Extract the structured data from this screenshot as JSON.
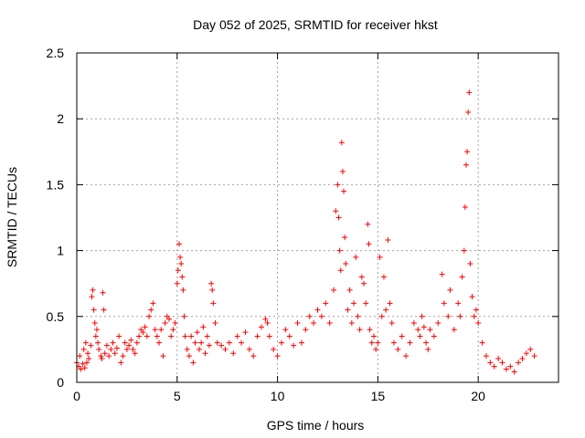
{
  "chart_data": {
    "type": "scatter",
    "title": "Day 052 of 2025, SRMTID for receiver hkst",
    "xlabel": "GPS time / hours",
    "ylabel": "SRMTID / TECUs",
    "xlim": [
      0,
      24
    ],
    "ylim": [
      0,
      2.5
    ],
    "x_ticks": [
      0,
      5,
      10,
      15,
      20
    ],
    "x_tick_labels": [
      "0",
      "5",
      "10",
      "15",
      "20"
    ],
    "y_ticks": [
      0,
      0.5,
      1,
      1.5,
      2,
      2.5
    ],
    "y_tick_labels": [
      "0",
      "0.5",
      "1",
      "1.5",
      "2",
      "2.5"
    ],
    "grid": true,
    "marker": "+",
    "series": [
      {
        "name": "SRMTID",
        "color": "#ff0000",
        "points": [
          [
            0.0,
            0.15
          ],
          [
            0.1,
            0.12
          ],
          [
            0.15,
            0.2
          ],
          [
            0.2,
            0.1
          ],
          [
            0.3,
            0.14
          ],
          [
            0.35,
            0.25
          ],
          [
            0.4,
            0.11
          ],
          [
            0.45,
            0.3
          ],
          [
            0.5,
            0.15
          ],
          [
            0.55,
            0.22
          ],
          [
            0.6,
            0.18
          ],
          [
            0.7,
            0.28
          ],
          [
            0.75,
            0.65
          ],
          [
            0.8,
            0.7
          ],
          [
            0.85,
            0.55
          ],
          [
            0.9,
            0.45
          ],
          [
            0.95,
            0.35
          ],
          [
            1.0,
            0.4
          ],
          [
            1.05,
            0.3
          ],
          [
            1.1,
            0.25
          ],
          [
            1.2,
            0.2
          ],
          [
            1.25,
            0.18
          ],
          [
            1.3,
            0.68
          ],
          [
            1.35,
            0.55
          ],
          [
            1.4,
            0.22
          ],
          [
            1.5,
            0.28
          ],
          [
            1.6,
            0.2
          ],
          [
            1.7,
            0.25
          ],
          [
            1.8,
            0.3
          ],
          [
            1.9,
            0.22
          ],
          [
            2.0,
            0.26
          ],
          [
            2.1,
            0.35
          ],
          [
            2.2,
            0.15
          ],
          [
            2.3,
            0.2
          ],
          [
            2.4,
            0.3
          ],
          [
            2.5,
            0.25
          ],
          [
            2.6,
            0.28
          ],
          [
            2.7,
            0.32
          ],
          [
            2.8,
            0.25
          ],
          [
            2.9,
            0.22
          ],
          [
            3.0,
            0.3
          ],
          [
            3.1,
            0.35
          ],
          [
            3.2,
            0.4
          ],
          [
            3.3,
            0.38
          ],
          [
            3.4,
            0.42
          ],
          [
            3.5,
            0.35
          ],
          [
            3.6,
            0.5
          ],
          [
            3.7,
            0.55
          ],
          [
            3.8,
            0.6
          ],
          [
            3.9,
            0.4
          ],
          [
            4.0,
            0.35
          ],
          [
            4.1,
            0.3
          ],
          [
            4.2,
            0.4
          ],
          [
            4.3,
            0.2
          ],
          [
            4.4,
            0.45
          ],
          [
            4.5,
            0.5
          ],
          [
            4.6,
            0.48
          ],
          [
            4.7,
            0.35
          ],
          [
            4.8,
            0.4
          ],
          [
            4.9,
            0.45
          ],
          [
            5.0,
            0.75
          ],
          [
            5.05,
            0.85
          ],
          [
            5.1,
            1.05
          ],
          [
            5.15,
            0.95
          ],
          [
            5.2,
            0.9
          ],
          [
            5.25,
            0.8
          ],
          [
            5.3,
            0.7
          ],
          [
            5.35,
            0.5
          ],
          [
            5.4,
            0.35
          ],
          [
            5.5,
            0.25
          ],
          [
            5.6,
            0.2
          ],
          [
            5.7,
            0.35
          ],
          [
            5.8,
            0.15
          ],
          [
            5.9,
            0.3
          ],
          [
            6.0,
            0.38
          ],
          [
            6.1,
            0.25
          ],
          [
            6.2,
            0.3
          ],
          [
            6.3,
            0.42
          ],
          [
            6.4,
            0.22
          ],
          [
            6.5,
            0.35
          ],
          [
            6.6,
            0.28
          ],
          [
            6.7,
            0.75
          ],
          [
            6.75,
            0.7
          ],
          [
            6.8,
            0.6
          ],
          [
            6.9,
            0.45
          ],
          [
            7.0,
            0.3
          ],
          [
            7.2,
            0.28
          ],
          [
            7.4,
            0.25
          ],
          [
            7.6,
            0.3
          ],
          [
            7.8,
            0.22
          ],
          [
            8.0,
            0.35
          ],
          [
            8.2,
            0.3
          ],
          [
            8.4,
            0.38
          ],
          [
            8.6,
            0.25
          ],
          [
            8.8,
            0.2
          ],
          [
            9.0,
            0.35
          ],
          [
            9.2,
            0.42
          ],
          [
            9.4,
            0.48
          ],
          [
            9.5,
            0.45
          ],
          [
            9.6,
            0.35
          ],
          [
            9.8,
            0.25
          ],
          [
            10.0,
            0.2
          ],
          [
            10.2,
            0.3
          ],
          [
            10.4,
            0.4
          ],
          [
            10.6,
            0.35
          ],
          [
            10.8,
            0.28
          ],
          [
            11.0,
            0.45
          ],
          [
            11.2,
            0.3
          ],
          [
            11.4,
            0.4
          ],
          [
            11.6,
            0.5
          ],
          [
            11.8,
            0.45
          ],
          [
            12.0,
            0.55
          ],
          [
            12.2,
            0.5
          ],
          [
            12.4,
            0.6
          ],
          [
            12.6,
            0.45
          ],
          [
            12.8,
            0.7
          ],
          [
            12.9,
            1.3
          ],
          [
            13.0,
            1.5
          ],
          [
            13.05,
            1.25
          ],
          [
            13.1,
            1.0
          ],
          [
            13.15,
            0.85
          ],
          [
            13.2,
            1.82
          ],
          [
            13.25,
            1.6
          ],
          [
            13.3,
            1.45
          ],
          [
            13.35,
            1.1
          ],
          [
            13.4,
            0.9
          ],
          [
            13.5,
            0.55
          ],
          [
            13.6,
            0.7
          ],
          [
            13.7,
            0.45
          ],
          [
            13.8,
            0.6
          ],
          [
            13.9,
            0.95
          ],
          [
            14.0,
            0.5
          ],
          [
            14.1,
            0.4
          ],
          [
            14.2,
            0.8
          ],
          [
            14.3,
            0.75
          ],
          [
            14.4,
            0.6
          ],
          [
            14.5,
            1.2
          ],
          [
            14.55,
            1.05
          ],
          [
            14.6,
            0.4
          ],
          [
            14.7,
            0.3
          ],
          [
            14.8,
            0.35
          ],
          [
            14.9,
            0.25
          ],
          [
            15.0,
            0.3
          ],
          [
            15.1,
            0.95
          ],
          [
            15.2,
            0.5
          ],
          [
            15.3,
            0.8
          ],
          [
            15.4,
            0.55
          ],
          [
            15.5,
            1.08
          ],
          [
            15.6,
            0.6
          ],
          [
            15.7,
            0.45
          ],
          [
            15.8,
            0.3
          ],
          [
            16.0,
            0.25
          ],
          [
            16.2,
            0.35
          ],
          [
            16.4,
            0.2
          ],
          [
            16.6,
            0.3
          ],
          [
            16.8,
            0.45
          ],
          [
            17.0,
            0.4
          ],
          [
            17.1,
            0.35
          ],
          [
            17.2,
            0.5
          ],
          [
            17.3,
            0.42
          ],
          [
            17.4,
            0.3
          ],
          [
            17.5,
            0.25
          ],
          [
            17.6,
            0.4
          ],
          [
            17.8,
            0.35
          ],
          [
            18.0,
            0.45
          ],
          [
            18.2,
            0.82
          ],
          [
            18.3,
            0.6
          ],
          [
            18.5,
            0.5
          ],
          [
            18.6,
            0.7
          ],
          [
            18.8,
            0.4
          ],
          [
            19.0,
            0.6
          ],
          [
            19.1,
            0.5
          ],
          [
            19.2,
            0.8
          ],
          [
            19.3,
            1.0
          ],
          [
            19.35,
            1.33
          ],
          [
            19.4,
            1.65
          ],
          [
            19.45,
            1.75
          ],
          [
            19.5,
            2.05
          ],
          [
            19.55,
            2.2
          ],
          [
            19.6,
            0.9
          ],
          [
            19.7,
            0.65
          ],
          [
            19.8,
            0.5
          ],
          [
            19.9,
            0.55
          ],
          [
            20.0,
            0.45
          ],
          [
            20.2,
            0.3
          ],
          [
            20.4,
            0.2
          ],
          [
            20.6,
            0.15
          ],
          [
            20.8,
            0.12
          ],
          [
            21.0,
            0.18
          ],
          [
            21.2,
            0.15
          ],
          [
            21.4,
            0.1
          ],
          [
            21.6,
            0.12
          ],
          [
            21.8,
            0.08
          ],
          [
            22.0,
            0.15
          ],
          [
            22.2,
            0.18
          ],
          [
            22.4,
            0.22
          ],
          [
            22.6,
            0.25
          ],
          [
            22.8,
            0.2
          ]
        ]
      }
    ]
  }
}
